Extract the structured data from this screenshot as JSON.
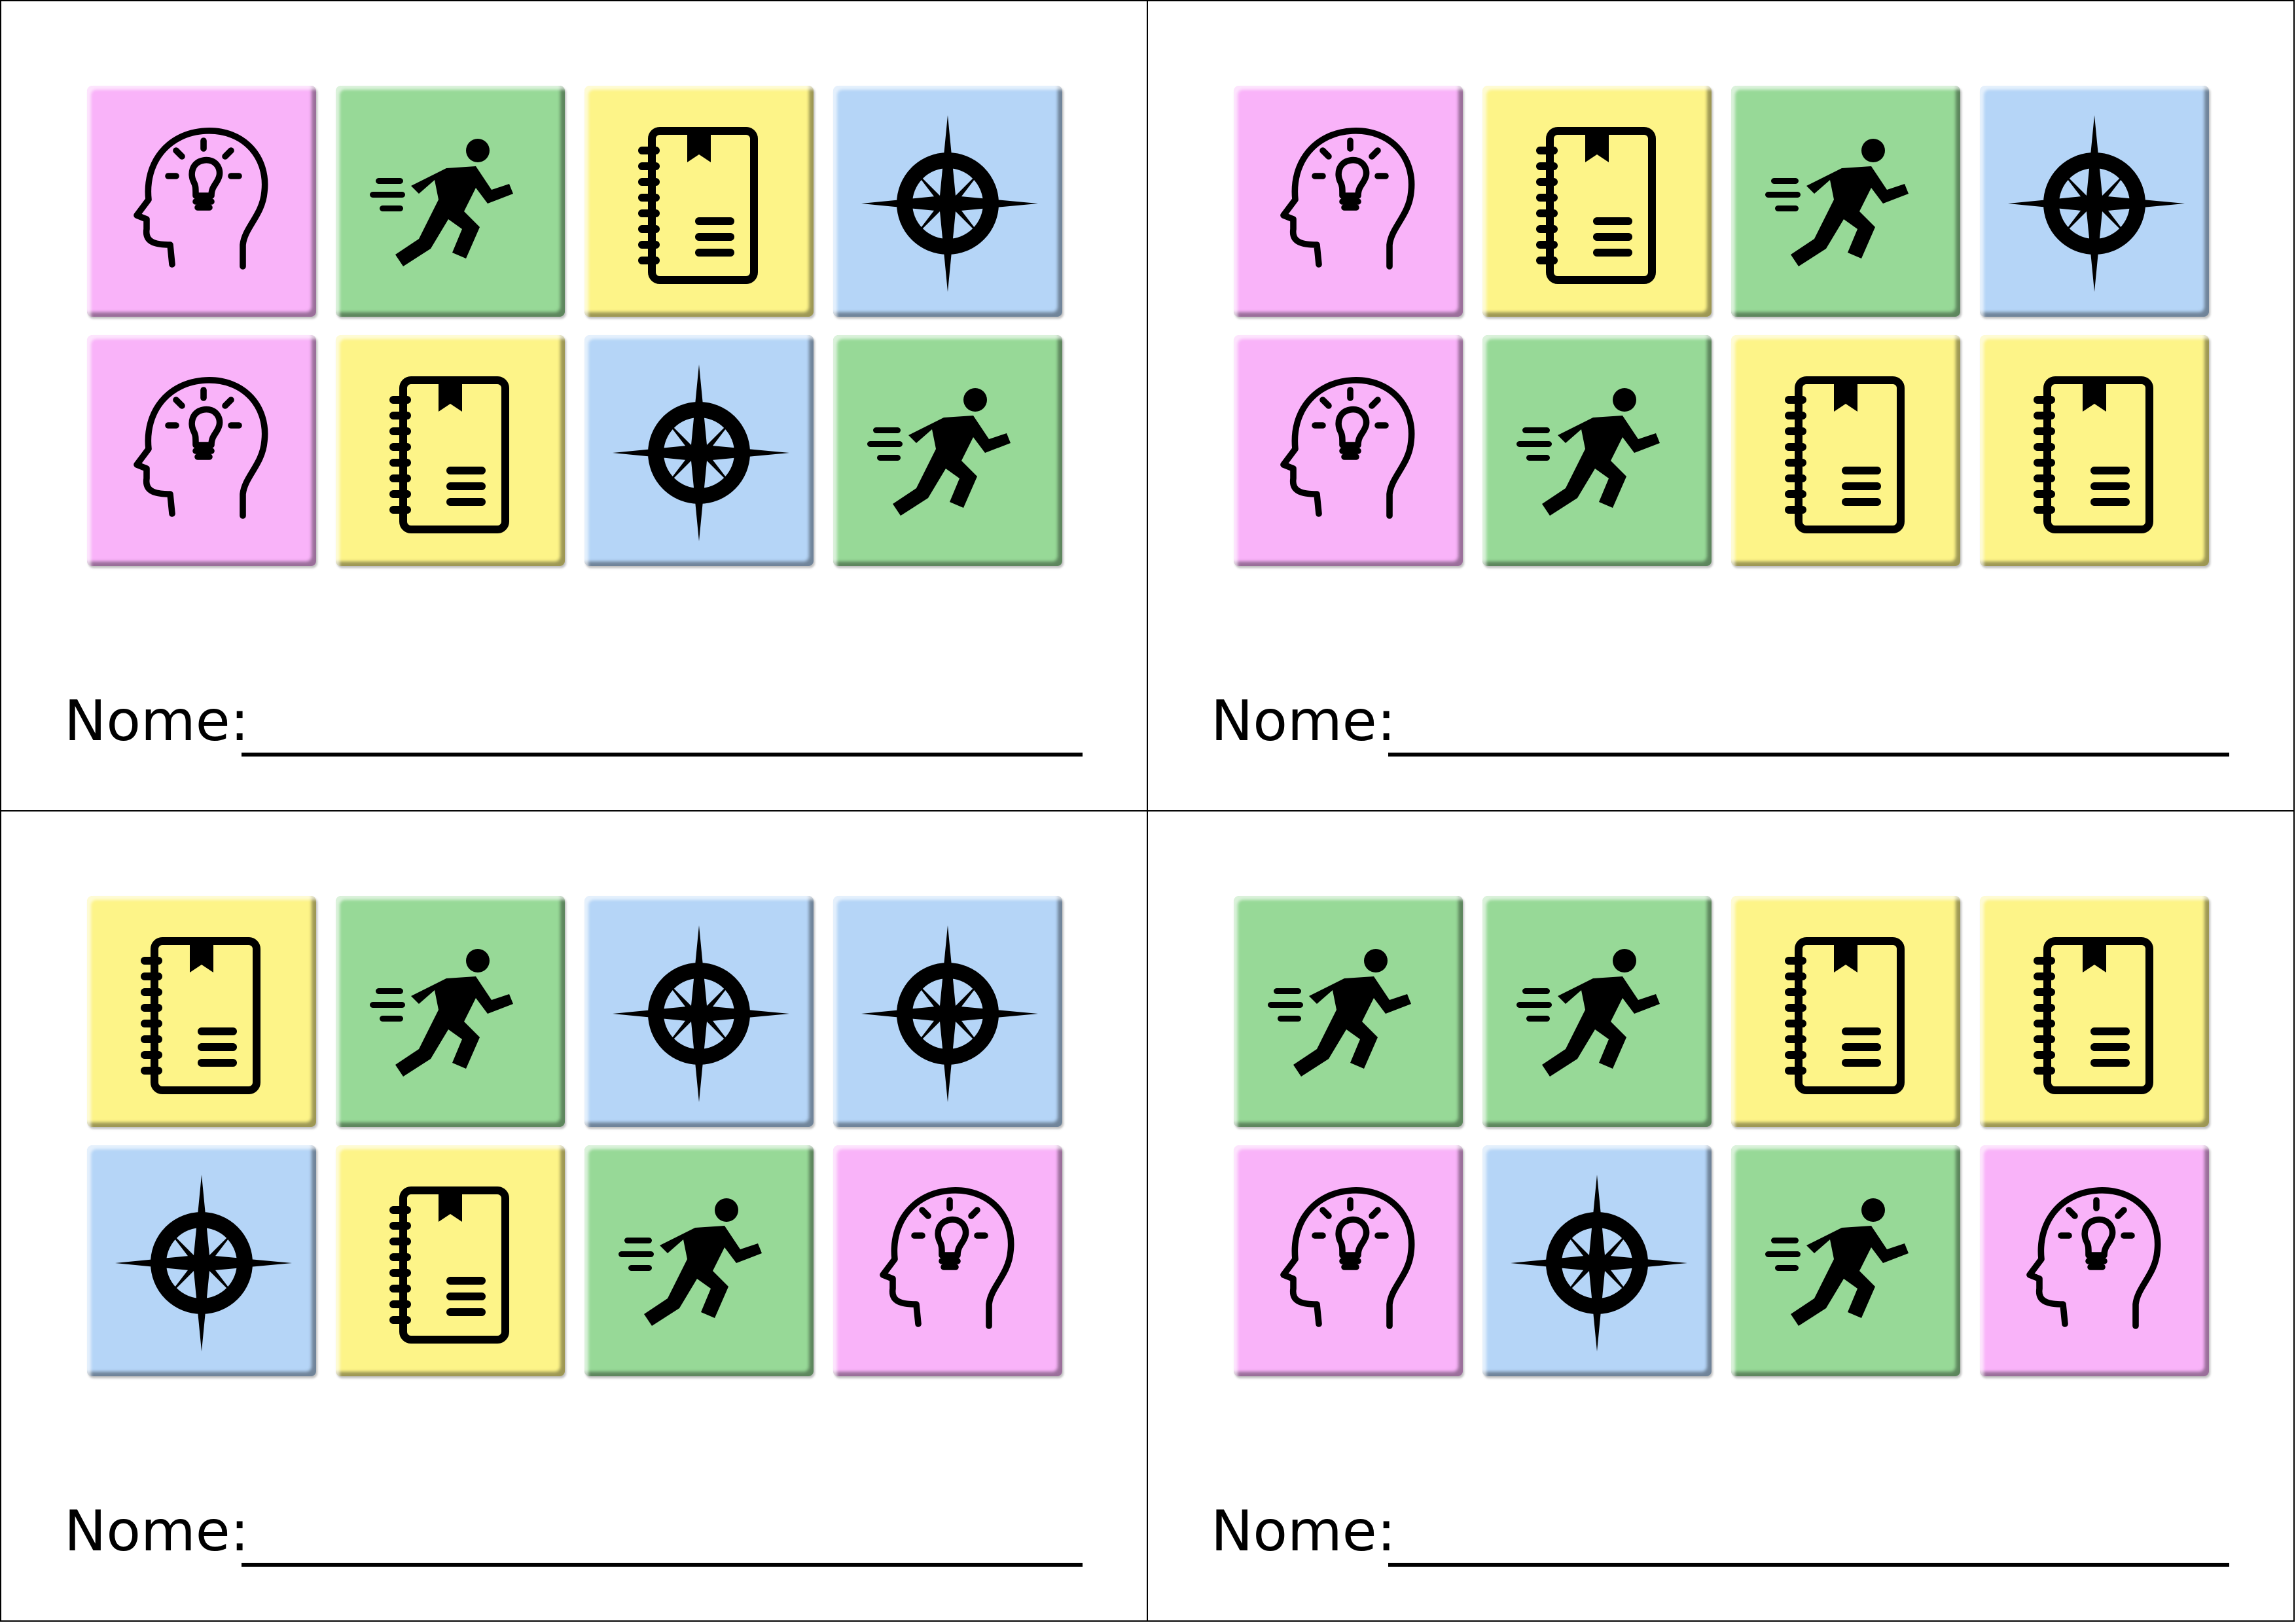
{
  "colors": {
    "pink": "#f9b3f9",
    "green": "#97d997",
    "yellow": "#fdf488",
    "blue": "#b5d5f7",
    "border": "#000000"
  },
  "icons": {
    "idea": "head-lightbulb-icon",
    "run": "running-person-icon",
    "notebook": "notebook-icon",
    "compass": "compass-rose-icon"
  },
  "cards": [
    {
      "name_label": "Nome: ",
      "tiles": [
        {
          "icon": "idea",
          "color": "pink"
        },
        {
          "icon": "run",
          "color": "green"
        },
        {
          "icon": "notebook",
          "color": "yellow"
        },
        {
          "icon": "compass",
          "color": "blue"
        },
        {
          "icon": "idea",
          "color": "pink"
        },
        {
          "icon": "notebook",
          "color": "yellow"
        },
        {
          "icon": "compass",
          "color": "blue"
        },
        {
          "icon": "run",
          "color": "green"
        }
      ]
    },
    {
      "name_label": "Nome: ",
      "tiles": [
        {
          "icon": "idea",
          "color": "pink"
        },
        {
          "icon": "notebook",
          "color": "yellow"
        },
        {
          "icon": "run",
          "color": "green"
        },
        {
          "icon": "compass",
          "color": "blue"
        },
        {
          "icon": "idea",
          "color": "pink"
        },
        {
          "icon": "run",
          "color": "green"
        },
        {
          "icon": "notebook",
          "color": "yellow"
        },
        {
          "icon": "notebook",
          "color": "yellow"
        }
      ]
    },
    {
      "name_label": "Nome: ",
      "tiles": [
        {
          "icon": "notebook",
          "color": "yellow"
        },
        {
          "icon": "run",
          "color": "green"
        },
        {
          "icon": "compass",
          "color": "blue"
        },
        {
          "icon": "compass",
          "color": "blue"
        },
        {
          "icon": "compass",
          "color": "blue"
        },
        {
          "icon": "notebook",
          "color": "yellow"
        },
        {
          "icon": "run",
          "color": "green"
        },
        {
          "icon": "idea",
          "color": "pink"
        }
      ]
    },
    {
      "name_label": "Nome: ",
      "tiles": [
        {
          "icon": "run",
          "color": "green"
        },
        {
          "icon": "run",
          "color": "green"
        },
        {
          "icon": "notebook",
          "color": "yellow"
        },
        {
          "icon": "notebook",
          "color": "yellow"
        },
        {
          "icon": "idea",
          "color": "pink"
        },
        {
          "icon": "compass",
          "color": "blue"
        },
        {
          "icon": "run",
          "color": "green"
        },
        {
          "icon": "idea",
          "color": "pink"
        }
      ]
    }
  ]
}
